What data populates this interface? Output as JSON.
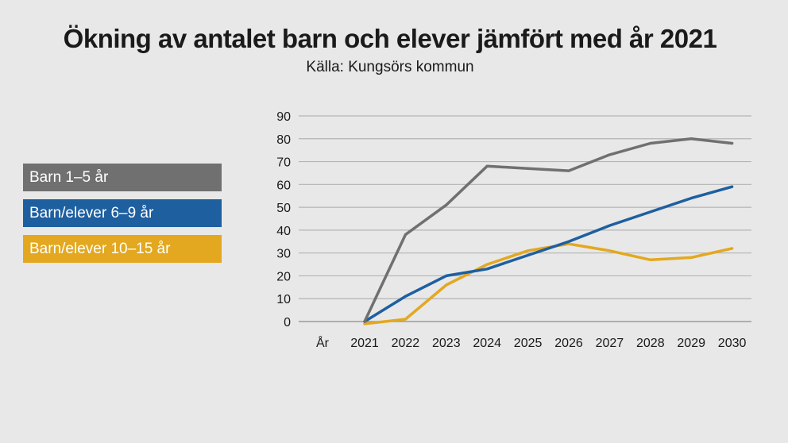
{
  "header": {
    "title": "Ökning av antalet barn och elever jämfört med år 2021",
    "subtitle": "Källa: Kungsörs kommun"
  },
  "legend": [
    {
      "label": "Barn 1–5 år",
      "color": "#707070"
    },
    {
      "label": "Barn/elever 6–9 år",
      "color": "#1e5fa0"
    },
    {
      "label": "Barn/elever 10–15 år",
      "color": "#e3a81f"
    }
  ],
  "chart_data": {
    "type": "line",
    "title": "Ökning av antalet barn och elever jämfört med år 2021",
    "subtitle": "Källa: Kungsörs kommun",
    "xlabel": "År",
    "ylabel": "",
    "categories": [
      "2021",
      "2022",
      "2023",
      "2024",
      "2025",
      "2026",
      "2027",
      "2028",
      "2029",
      "2030"
    ],
    "ylim": [
      0,
      90
    ],
    "yticks": [
      0,
      10,
      20,
      30,
      40,
      50,
      60,
      70,
      80,
      90
    ],
    "grid": true,
    "legend_position": "left",
    "series": [
      {
        "name": "Barn 1–5 år",
        "color": "#707070",
        "values": [
          0,
          38,
          51,
          68,
          67,
          66,
          73,
          78,
          80,
          78
        ]
      },
      {
        "name": "Barn/elever 6–9 år",
        "color": "#1e5fa0",
        "values": [
          0,
          11,
          20,
          23,
          29,
          35,
          42,
          48,
          54,
          59
        ]
      },
      {
        "name": "Barn/elever 10–15 år",
        "color": "#e3a81f",
        "values": [
          -1,
          1,
          16,
          25,
          31,
          34,
          31,
          27,
          28,
          32
        ]
      }
    ]
  }
}
